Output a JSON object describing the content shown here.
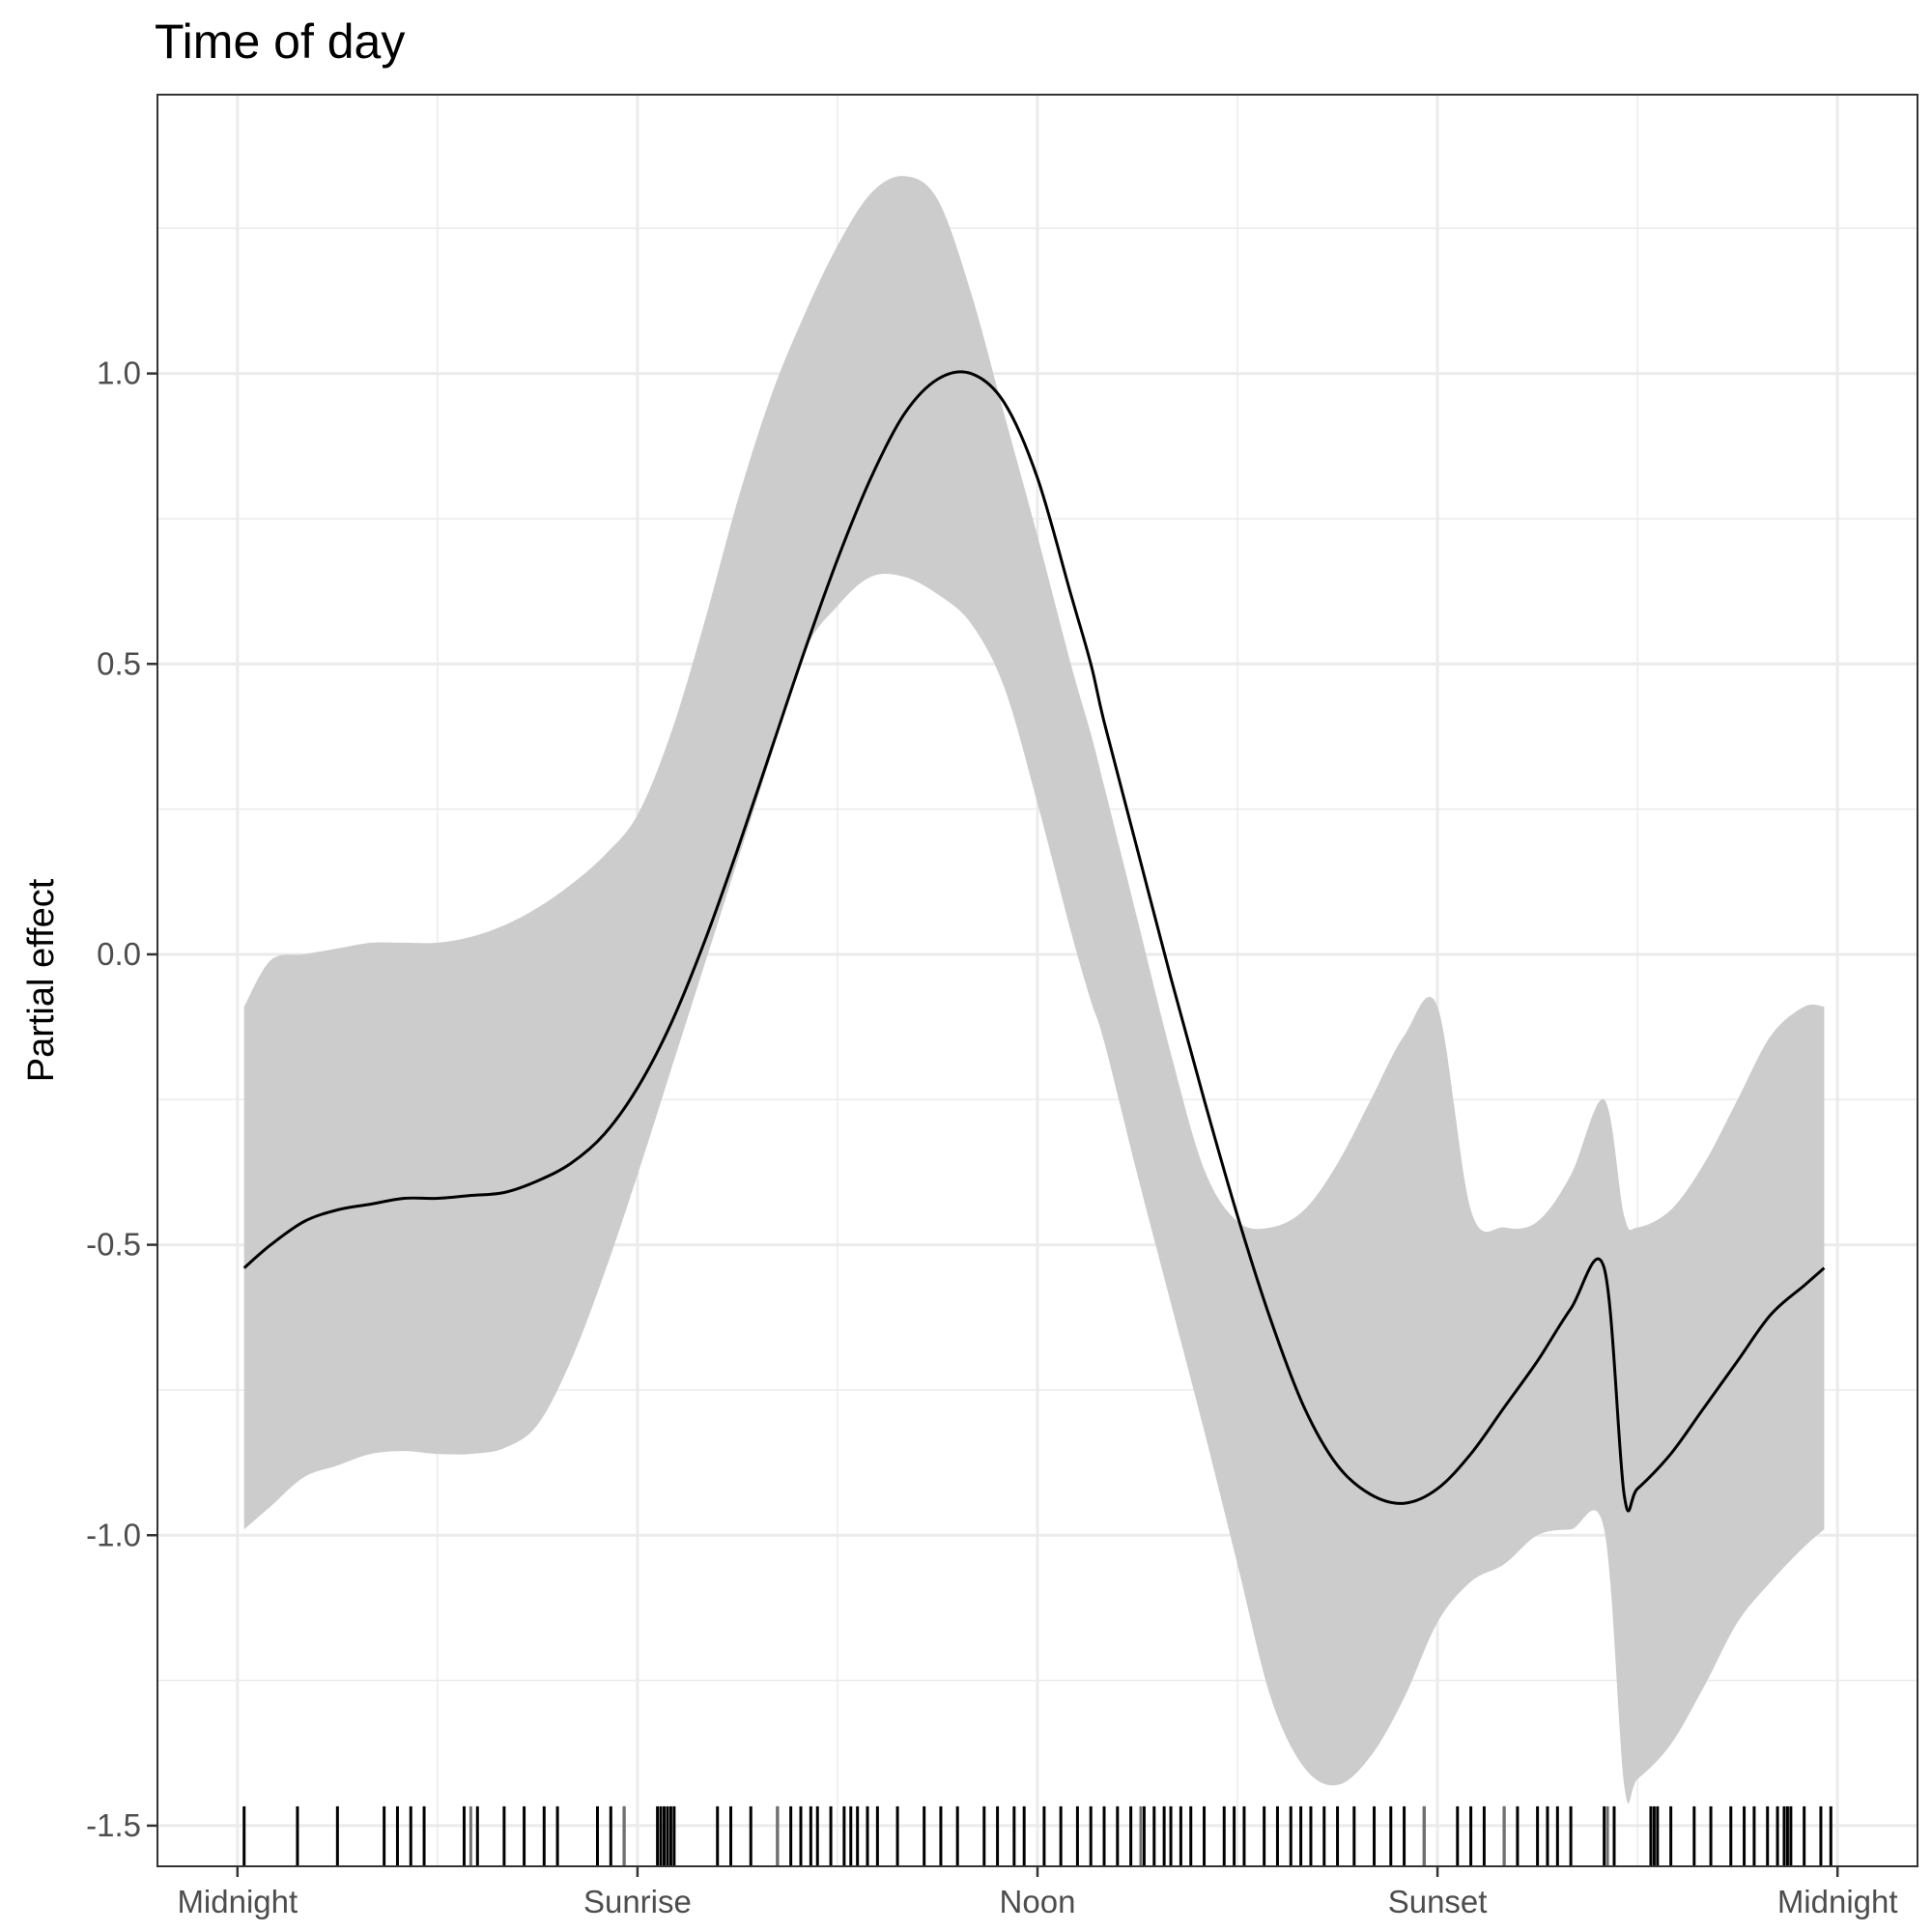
{
  "chart_data": {
    "type": "line",
    "title": "Time of day",
    "xlabel": "",
    "ylabel": "Partial effect",
    "x_ticks": [
      {
        "value": 0,
        "label": "Midnight"
      },
      {
        "value": 6,
        "label": "Sunrise"
      },
      {
        "value": 12,
        "label": "Noon"
      },
      {
        "value": 18,
        "label": "Sunset"
      },
      {
        "value": 24,
        "label": "Midnight"
      }
    ],
    "y_ticks": [
      1.0,
      0.5,
      0.0,
      -0.5,
      -1.0,
      -1.5
    ],
    "y_tick_labels": [
      "1.0",
      "0.5",
      "0.0",
      "-0.5",
      "-1.0",
      "-1.5"
    ],
    "xlim": [
      -1.2,
      25.2
    ],
    "ylim": [
      -1.57,
      1.48
    ],
    "grid": true,
    "colors": {
      "line": "#000000",
      "ribbon": "#cccccc",
      "rug": "#000000",
      "rug_light": "#707070"
    },
    "series": [
      {
        "x": [
          0.1,
          0.5,
          1.0,
          1.5,
          2.0,
          2.5,
          3.0,
          3.5,
          4.0,
          4.5,
          5.0,
          5.5,
          6.0,
          6.5,
          7.0,
          7.5,
          8.0,
          8.5,
          9.0,
          9.5,
          10.0,
          10.5,
          11.0,
          11.5,
          12.0,
          12.5,
          12.8,
          13.0,
          13.5,
          14.0,
          14.5,
          15.0,
          15.5,
          16.0,
          16.5,
          17.0,
          17.5,
          18.0,
          18.5,
          19.0,
          19.5,
          20.0,
          20.5,
          20.8,
          21.0,
          21.5,
          22.0,
          22.5,
          23.0,
          23.5,
          23.8
        ],
        "fit": [
          -0.54,
          -0.5,
          -0.46,
          -0.44,
          -0.43,
          -0.42,
          -0.42,
          -0.415,
          -0.41,
          -0.39,
          -0.36,
          -0.31,
          -0.23,
          -0.12,
          0.02,
          0.18,
          0.35,
          0.52,
          0.68,
          0.82,
          0.93,
          0.99,
          1.0,
          0.95,
          0.82,
          0.62,
          0.5,
          0.4,
          0.18,
          -0.04,
          -0.25,
          -0.45,
          -0.63,
          -0.78,
          -0.88,
          -0.93,
          -0.945,
          -0.92,
          -0.86,
          -0.78,
          -0.7,
          -0.61,
          -0.54,
          -0.93,
          -0.92,
          -0.86,
          -0.78,
          -0.7,
          -0.62,
          -0.57,
          -0.54
        ],
        "upper": [
          -0.09,
          -0.01,
          0.0,
          0.01,
          0.02,
          0.02,
          0.02,
          0.03,
          0.05,
          0.08,
          0.12,
          0.17,
          0.24,
          0.38,
          0.57,
          0.78,
          0.96,
          1.1,
          1.22,
          1.31,
          1.34,
          1.3,
          1.14,
          0.93,
          0.72,
          0.5,
          0.38,
          0.29,
          0.06,
          -0.17,
          -0.37,
          -0.46,
          -0.47,
          -0.44,
          -0.36,
          -0.25,
          -0.14,
          -0.09,
          -0.44,
          -0.47,
          -0.46,
          -0.38,
          -0.25,
          -0.45,
          -0.47,
          -0.44,
          -0.36,
          -0.25,
          -0.14,
          -0.09,
          -0.09
        ],
        "lower": [
          -0.99,
          -0.95,
          -0.9,
          -0.88,
          -0.86,
          -0.855,
          -0.86,
          -0.86,
          -0.85,
          -0.81,
          -0.7,
          -0.55,
          -0.38,
          -0.2,
          -0.02,
          0.16,
          0.34,
          0.52,
          0.6,
          0.65,
          0.65,
          0.62,
          0.57,
          0.46,
          0.26,
          0.04,
          -0.08,
          -0.15,
          -0.38,
          -0.6,
          -0.82,
          -1.05,
          -1.28,
          -1.4,
          -1.43,
          -1.38,
          -1.28,
          -1.15,
          -1.08,
          -1.05,
          -1.0,
          -0.99,
          -0.99,
          -1.43,
          -1.42,
          -1.36,
          -1.26,
          -1.15,
          -1.08,
          -1.02,
          -0.99
        ]
      }
    ],
    "rug": [
      0.1,
      0.9,
      1.5,
      2.2,
      2.4,
      2.6,
      2.8,
      3.4,
      3.6,
      4.0,
      4.3,
      4.6,
      4.8,
      5.4,
      5.6,
      5.8,
      6.3,
      6.35,
      6.4,
      6.45,
      6.5,
      6.55,
      7.2,
      7.4,
      7.7,
      8.1,
      8.3,
      8.45,
      8.6,
      8.7,
      8.9,
      9.1,
      9.2,
      9.3,
      9.45,
      9.6,
      9.9,
      10.3,
      10.55,
      10.8,
      11.2,
      11.4,
      11.65,
      11.8,
      12.1,
      12.35,
      12.6,
      12.8,
      13.0,
      13.2,
      13.4,
      13.6,
      13.75,
      13.9,
      14.0,
      14.15,
      14.3,
      14.5,
      14.8,
      14.95,
      15.1,
      15.4,
      15.6,
      15.8,
      15.95,
      16.1,
      16.3,
      16.5,
      16.75,
      17.05,
      17.3,
      17.5,
      17.8,
      18.3,
      18.5,
      18.7,
      19.0,
      19.2,
      19.5,
      19.65,
      19.8,
      20.0,
      20.5,
      20.65,
      21.2,
      21.25,
      21.3,
      21.5,
      21.85,
      22.1,
      22.4,
      22.6,
      22.75,
      22.95,
      23.1,
      23.2,
      23.25,
      23.3,
      23.5,
      23.75,
      23.9
    ],
    "rug_light": [
      3.5,
      5.8,
      8.1,
      13.55,
      17.8,
      19.0,
      20.55
    ]
  }
}
